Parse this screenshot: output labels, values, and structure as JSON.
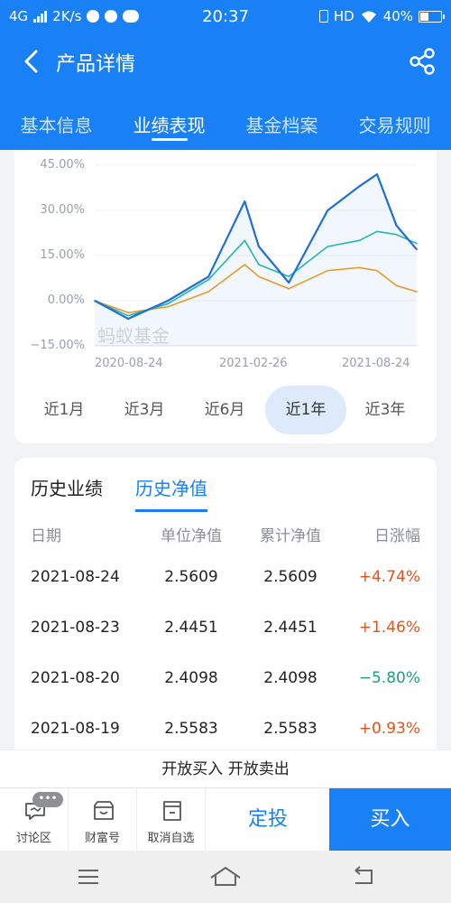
{
  "status": {
    "network": "4G",
    "speed": "2K/s",
    "time": "20:37",
    "hd": "HD",
    "battery": "40%"
  },
  "header": {
    "title": "产品详情"
  },
  "tabs": [
    {
      "label": "基本信息"
    },
    {
      "label": "业绩表现"
    },
    {
      "label": "基金档案"
    },
    {
      "label": "交易规则"
    }
  ],
  "chart": {
    "watermark": "蚂蚁基金",
    "y_ticks": [
      "45.00%",
      "30.00%",
      "15.00%",
      "0.00%",
      "−15.00%"
    ],
    "x_ticks": [
      "2020-08-24",
      "2021-02-26",
      "2021-08-24"
    ]
  },
  "chart_data": {
    "type": "line",
    "x": [
      "2020-08-24",
      "2020-10-01",
      "2020-11-15",
      "2020-12-31",
      "2021-02-10",
      "2021-02-26",
      "2021-04-01",
      "2021-05-15",
      "2021-06-20",
      "2021-07-10",
      "2021-08-01",
      "2021-08-24"
    ],
    "ylim": [
      -15,
      45
    ],
    "y_unit": "%",
    "grid": true,
    "colors": {
      "series1": "#1e6fd6",
      "series2": "#22b5b5",
      "series3": "#e89a2a"
    },
    "series": [
      {
        "values": [
          0.0,
          -6.0,
          0.0,
          8.0,
          33.0,
          18.0,
          6.0,
          30.0,
          38.0,
          42.0,
          25.0,
          17.0
        ]
      },
      {
        "values": [
          0.0,
          -5.0,
          -1.0,
          7.0,
          20.0,
          12.0,
          8.0,
          18.0,
          20.0,
          23.0,
          22.0,
          19.0
        ]
      },
      {
        "values": [
          0.0,
          -4.0,
          -2.0,
          3.0,
          12.0,
          8.0,
          4.0,
          10.0,
          11.0,
          10.0,
          5.0,
          3.0
        ]
      }
    ]
  },
  "periods": [
    {
      "label": "近1月"
    },
    {
      "label": "近3月"
    },
    {
      "label": "近6月"
    },
    {
      "label": "近1年"
    },
    {
      "label": "近3年"
    }
  ],
  "history": {
    "tabs": [
      "历史业绩",
      "历史净值"
    ],
    "columns": [
      "日期",
      "单位净值",
      "累计净值",
      "日涨幅"
    ],
    "rows": [
      {
        "date": "2021-08-24",
        "nav": "2.5609",
        "acc": "2.5609",
        "chg": "+4.74%"
      },
      {
        "date": "2021-08-23",
        "nav": "2.4451",
        "acc": "2.4451",
        "chg": "+1.46%"
      },
      {
        "date": "2021-08-20",
        "nav": "2.4098",
        "acc": "2.4098",
        "chg": "−5.80%"
      },
      {
        "date": "2021-08-19",
        "nav": "2.5583",
        "acc": "2.5583",
        "chg": "+0.93%"
      }
    ]
  },
  "banner": "开放买入 开放卖出",
  "bottom": {
    "discuss": "讨论区",
    "discuss_badge": "•••",
    "wealth": "财富号",
    "unwatch": "取消自选",
    "sip": "定投",
    "buy": "买入"
  }
}
